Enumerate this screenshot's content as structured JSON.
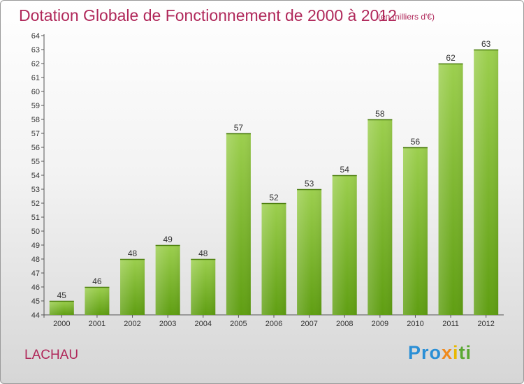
{
  "title": "Dotation Globale de Fonctionnement de 2000 à 2012",
  "unit": "(en milliers d'€)",
  "commune": "LACHAU",
  "logo": {
    "text": "Proxiti",
    "p1": "Pro",
    "p2": "x",
    "p3": "i",
    "p4": "ti"
  },
  "colors": {
    "title": "#b0285a",
    "bar_top": "#9ccf4e",
    "bar_bottom": "#5f9e12"
  },
  "chart_data": {
    "type": "bar",
    "title": "Dotation Globale de Fonctionnement de 2000 à 2012",
    "subtitle": "(en milliers d'€)",
    "xlabel": "",
    "ylabel": "",
    "categories": [
      "2000",
      "2001",
      "2002",
      "2003",
      "2004",
      "2005",
      "2006",
      "2007",
      "2008",
      "2009",
      "2010",
      "2011",
      "2012"
    ],
    "values": [
      45,
      46,
      48,
      49,
      48,
      57,
      52,
      53,
      54,
      58,
      56,
      62,
      63
    ],
    "ylim": [
      44,
      64
    ],
    "yticks": [
      44,
      45,
      46,
      47,
      48,
      49,
      50,
      51,
      52,
      53,
      54,
      55,
      56,
      57,
      58,
      59,
      60,
      61,
      62,
      63,
      64
    ],
    "grid": false,
    "data_labels": true
  }
}
